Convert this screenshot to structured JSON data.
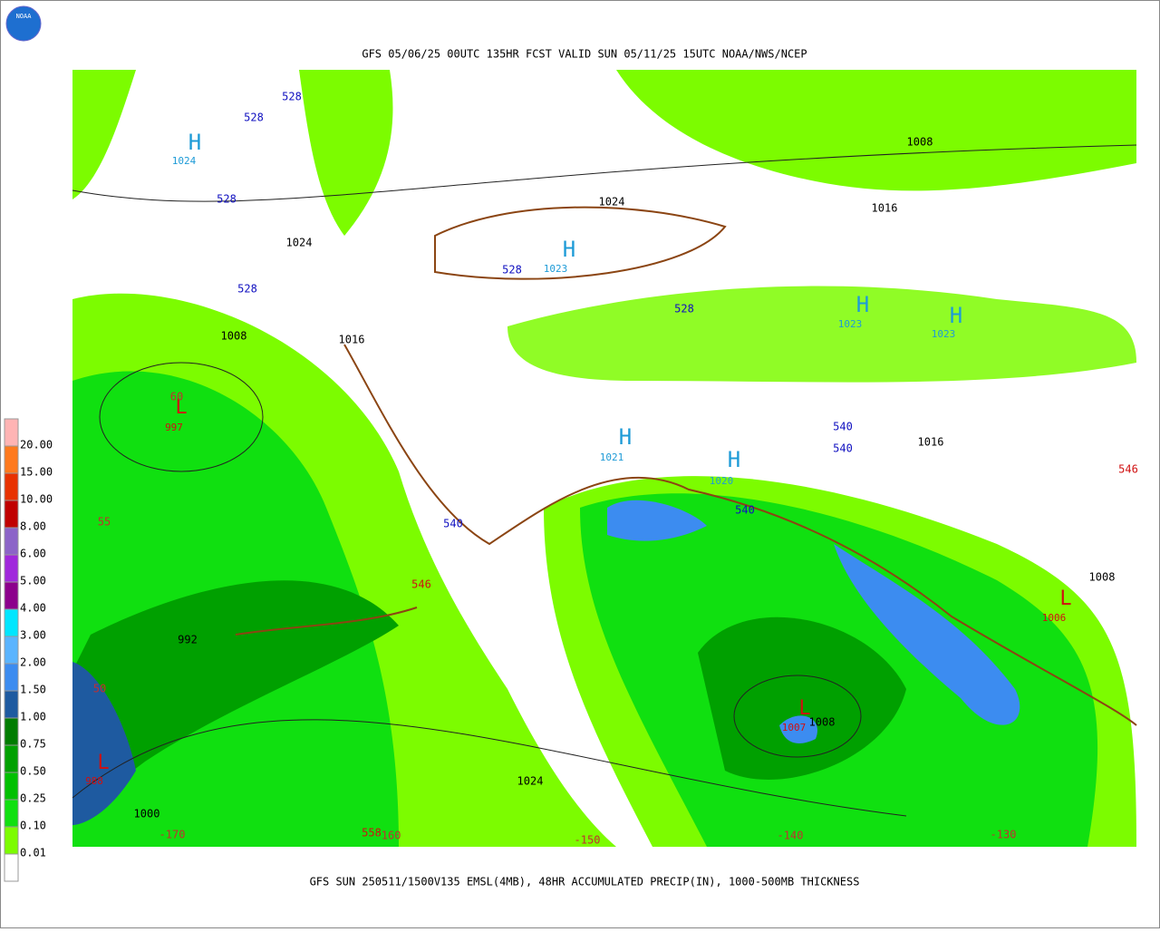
{
  "header": {
    "title": "GFS 05/06/25 00UTC 135HR FCST VALID SUN 05/11/25 15UTC NOAA/NWS/NCEP",
    "logo": "NOAA"
  },
  "footer": {
    "caption": "GFS SUN 250511/1500V135 EMSL(4MB), 48HR ACCUMULATED PRECIP(IN), 1000-500MB THICKNESS"
  },
  "legend": {
    "levels": [
      "0.01",
      "0.10",
      "0.25",
      "0.50",
      "0.75",
      "1.00",
      "1.50",
      "2.00",
      "3.00",
      "4.00",
      "5.00",
      "6.00",
      "8.00",
      "10.00",
      "15.00",
      "20.00"
    ],
    "colors": [
      "#ffffff",
      "#7cfc00",
      "#10e010",
      "#00c000",
      "#00a000",
      "#007c00",
      "#1e5aa0",
      "#3c8cf0",
      "#5ab4ff",
      "#00e6ff",
      "#8c008c",
      "#a028dc",
      "#8c64c8",
      "#c00000",
      "#e83200",
      "#ff7a1e",
      "#ffb4b4"
    ]
  },
  "map": {
    "highs": [
      {
        "symbol": "H",
        "pressure": "1024"
      },
      {
        "symbol": "H",
        "pressure": "1023"
      },
      {
        "symbol": "H",
        "pressure": "1023"
      },
      {
        "symbol": "H",
        "pressure": "1023"
      },
      {
        "symbol": "H",
        "pressure": "1021"
      },
      {
        "symbol": "H",
        "pressure": "1020"
      }
    ],
    "lows": [
      {
        "symbol": "L",
        "pressure": "997"
      },
      {
        "symbol": "L",
        "pressure": "988"
      },
      {
        "symbol": "L",
        "pressure": "1007"
      },
      {
        "symbol": "L",
        "pressure": "1006"
      }
    ],
    "isobars": [
      "1008",
      "1024",
      "1016",
      "1024",
      "1008",
      "1016",
      "1016",
      "1008",
      "992",
      "1008",
      "1024",
      "1000"
    ],
    "thickness_low": [
      "528",
      "528",
      "528",
      "528",
      "528",
      "528",
      "540",
      "540",
      "540",
      "540"
    ],
    "thickness_high": [
      "546",
      "558",
      "546"
    ],
    "longitudes": [
      "-170",
      "-160",
      "-150",
      "-140",
      "-130"
    ],
    "latitudes": [
      "60",
      "55",
      "50"
    ]
  }
}
